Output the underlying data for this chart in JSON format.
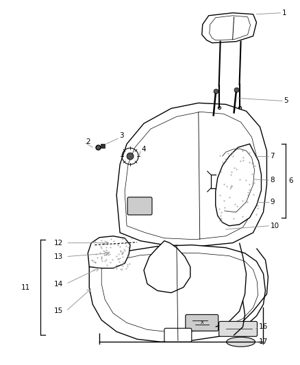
{
  "background_color": "#ffffff",
  "line_color": "#000000",
  "gray_color": "#888888",
  "figsize": [
    4.39,
    5.33
  ],
  "dpi": 100,
  "font_size": 7.5
}
